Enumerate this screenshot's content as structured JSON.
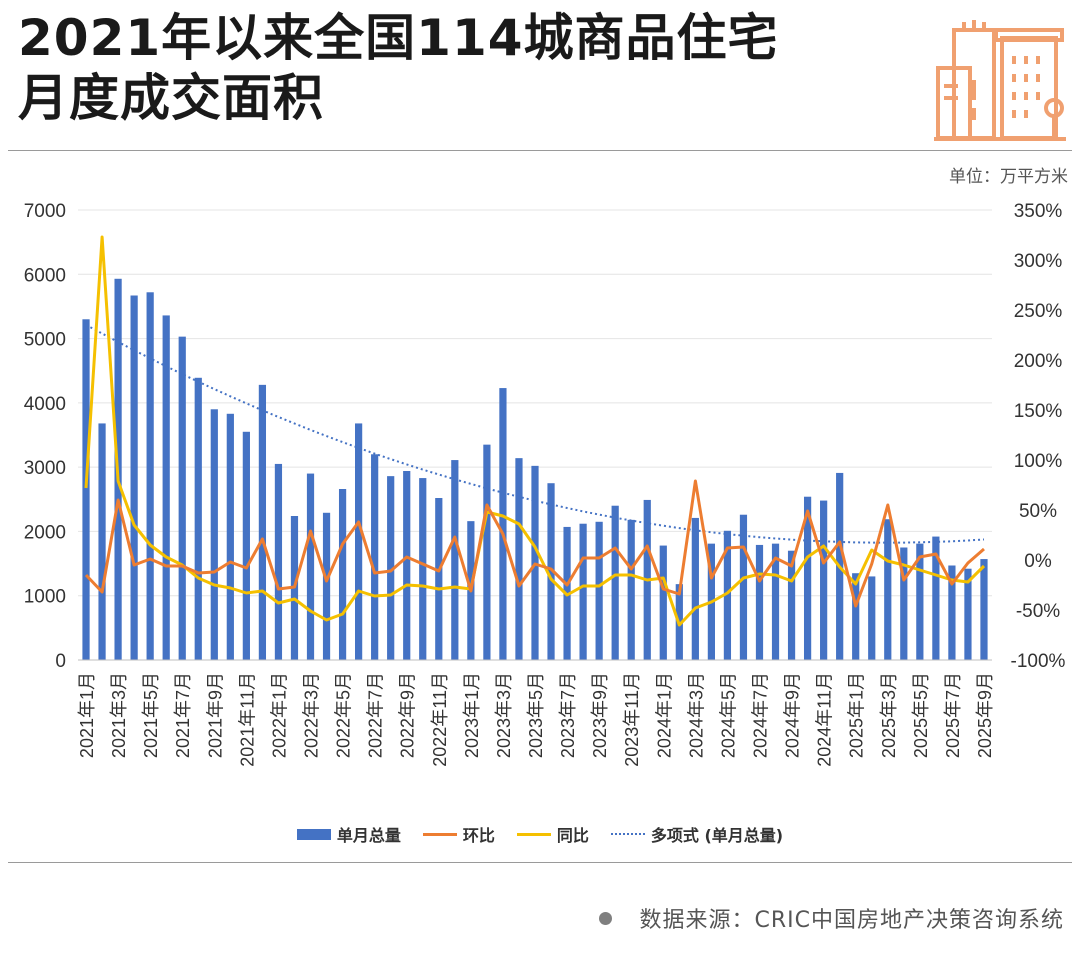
{
  "title": {
    "line1": "2021年以来全国114城商品住宅",
    "line2": "月度成交面积"
  },
  "unit_label": "单位：万平方米",
  "source": "数据来源：CRIC中国房地产决策咨询系统",
  "logo_icon": "city-buildings-icon",
  "colors": {
    "bar": "#4472c4",
    "mom": "#ed7d31",
    "yoy": "#f5c000",
    "trend": "#4472c4",
    "logo": "#f0a070"
  },
  "chart_data": {
    "type": "bar",
    "categories": [
      "2021年1月",
      "2021年2月",
      "2021年3月",
      "2021年4月",
      "2021年5月",
      "2021年6月",
      "2021年7月",
      "2021年8月",
      "2021年9月",
      "2021年10月",
      "2021年11月",
      "2021年12月",
      "2022年1月",
      "2022年2月",
      "2022年3月",
      "2022年4月",
      "2022年5月",
      "2022年6月",
      "2022年7月",
      "2022年8月",
      "2022年9月",
      "2022年10月",
      "2022年11月",
      "2022年12月",
      "2023年1月",
      "2023年2月",
      "2023年3月",
      "2023年4月",
      "2023年5月",
      "2023年6月",
      "2023年7月",
      "2023年8月",
      "2023年9月",
      "2023年10月",
      "2023年11月",
      "2023年12月",
      "2024年1月",
      "2024年2月",
      "2024年3月",
      "2024年4月",
      "2024年5月",
      "2024年6月",
      "2024年7月",
      "2024年8月",
      "2024年9月",
      "2024年10月",
      "2024年11月",
      "2024年12月",
      "2025年1月",
      "2025年2月",
      "2025年3月",
      "2025年4月",
      "2025年5月",
      "2025年6月",
      "2025年7月",
      "2025年8月",
      "2025年9月"
    ],
    "tick_labels": [
      "2021年1月",
      "2021年3月",
      "2021年5月",
      "2021年7月",
      "2021年9月",
      "2021年11月",
      "2022年1月",
      "2022年3月",
      "2022年5月",
      "2022年7月",
      "2022年9月",
      "2022年11月",
      "2023年1月",
      "2023年3月",
      "2023年5月",
      "2023年7月",
      "2023年9月",
      "2023年11月",
      "2024年1月",
      "2024年3月",
      "2024年5月",
      "2024年7月",
      "2024年9月",
      "2024年11月",
      "2025年1月",
      "2025年3月",
      "2025年5月",
      "2025年7月",
      "2025年9月"
    ],
    "series": [
      {
        "name": "单月总量",
        "type": "bar",
        "axis": "left",
        "values": [
          5300,
          3680,
          5930,
          5670,
          5720,
          5360,
          5030,
          4390,
          3900,
          3830,
          3550,
          4280,
          3050,
          2240,
          2900,
          2290,
          2660,
          3680,
          3200,
          2860,
          2940,
          2830,
          2520,
          3110,
          2160,
          3350,
          4230,
          3140,
          3020,
          2750,
          2070,
          2120,
          2150,
          2400,
          2180,
          2490,
          1780,
          1180,
          2210,
          1810,
          2010,
          2260,
          1790,
          1810,
          1700,
          2540,
          2480,
          2910,
          1350,
          1300,
          2190,
          1750,
          1810,
          1920,
          1470,
          1420,
          1570
        ]
      },
      {
        "name": "环比",
        "type": "line",
        "axis": "right",
        "values": [
          -15,
          -32,
          60,
          -5,
          1,
          -6,
          -6,
          -13,
          -12,
          -2,
          -8,
          21,
          -29,
          -27,
          29,
          -21,
          16,
          38,
          -13,
          -11,
          3,
          -4,
          -11,
          23,
          -31,
          55,
          26,
          -26,
          -4,
          -9,
          -25,
          2,
          2,
          12,
          -9,
          14,
          -29,
          -34,
          79,
          -18,
          12,
          13,
          -21,
          2,
          -6,
          49,
          -3,
          18,
          -46,
          -4,
          55,
          -20,
          3,
          6,
          -24,
          -3,
          11
        ]
      },
      {
        "name": "同比",
        "type": "line",
        "axis": "right",
        "values": [
          72,
          323,
          79,
          35,
          15,
          3,
          -5,
          -18,
          -25,
          -28,
          -33,
          -31,
          -43,
          -39,
          -51,
          -60,
          -54,
          -31,
          -36,
          -35,
          -25,
          -26,
          -29,
          -27,
          -29,
          48,
          44,
          36,
          13,
          -19,
          -35,
          -26,
          -26,
          -15,
          -15,
          -20,
          -18,
          -65,
          -48,
          -42,
          -33,
          -18,
          -14,
          -15,
          -21,
          3,
          14,
          -7,
          -24,
          10,
          -1,
          -5,
          -10,
          -15,
          -20,
          -22,
          -6
        ]
      },
      {
        "name": "多项式 (单月总量)",
        "type": "trend",
        "axis": "left",
        "style": "dotted"
      }
    ],
    "y_left": {
      "min": 0,
      "max": 7000,
      "ticks": [
        0,
        1000,
        2000,
        3000,
        4000,
        5000,
        6000,
        7000
      ]
    },
    "y_right": {
      "min": -100,
      "max": 350,
      "ticks": [
        "-100%",
        "-50%",
        "0%",
        "50%",
        "100%",
        "150%",
        "200%",
        "250%",
        "300%",
        "350%"
      ]
    },
    "gridlines": true,
    "legend_position": "bottom"
  },
  "legend": [
    {
      "label": "单月总量",
      "kind": "bar",
      "name": "legend-monthly-total"
    },
    {
      "label": "环比",
      "kind": "mom",
      "name": "legend-mom"
    },
    {
      "label": "同比",
      "kind": "yoy",
      "name": "legend-yoy"
    },
    {
      "label": "多项式 (单月总量)",
      "kind": "trend",
      "name": "legend-poly-trend"
    }
  ]
}
